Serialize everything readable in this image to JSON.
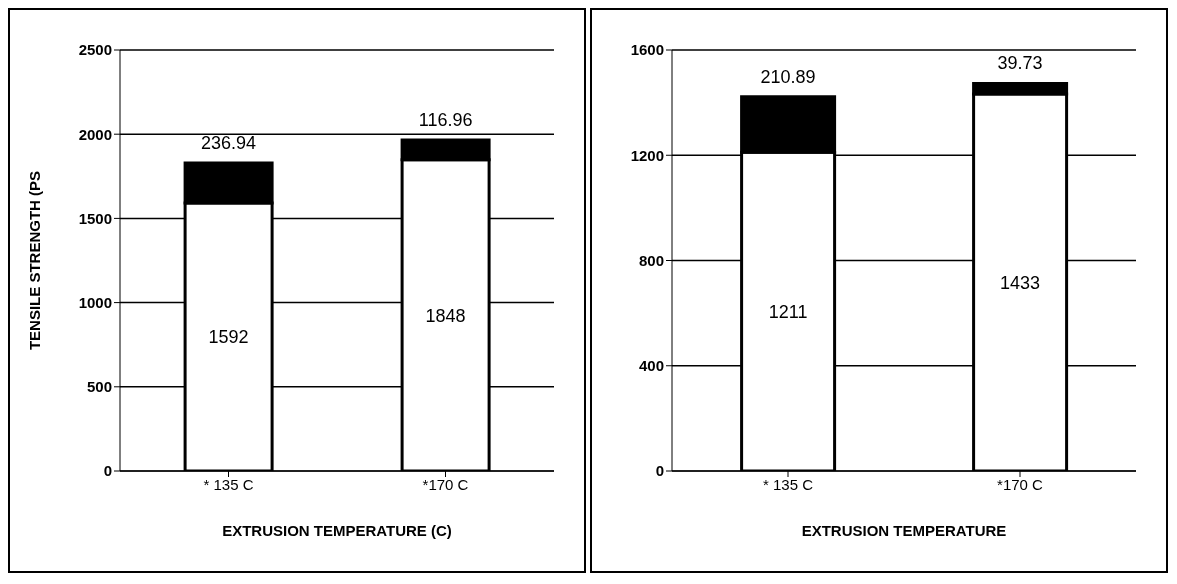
{
  "chart_data": [
    {
      "type": "bar",
      "stacked": true,
      "ylabel": "TENSILE STRENGTH (PS",
      "xlabel": "EXTRUSION TEMPERATURE (C)",
      "categories": [
        "* 135 C",
        "*170 C"
      ],
      "series": [
        {
          "color": "#ffffff",
          "values": [
            1592,
            1848
          ]
        },
        {
          "color": "#000000",
          "values": [
            236.94,
            116.96
          ]
        }
      ],
      "ylim": [
        0,
        2500
      ],
      "yticks": [
        0,
        500,
        1000,
        1500,
        2000,
        2500
      ],
      "grid": "y",
      "data_labels": true
    },
    {
      "type": "bar",
      "stacked": true,
      "xlabel": "EXTRUSION TEMPERATURE",
      "categories": [
        "* 135 C",
        "*170 C"
      ],
      "series": [
        {
          "color": "#ffffff",
          "values": [
            1211,
            1433
          ]
        },
        {
          "color": "#000000",
          "values": [
            210.89,
            39.73
          ]
        }
      ],
      "ylim": [
        0,
        1600
      ],
      "yticks": [
        0,
        400,
        800,
        1200,
        1600
      ],
      "grid": "y",
      "data_labels": true
    }
  ]
}
